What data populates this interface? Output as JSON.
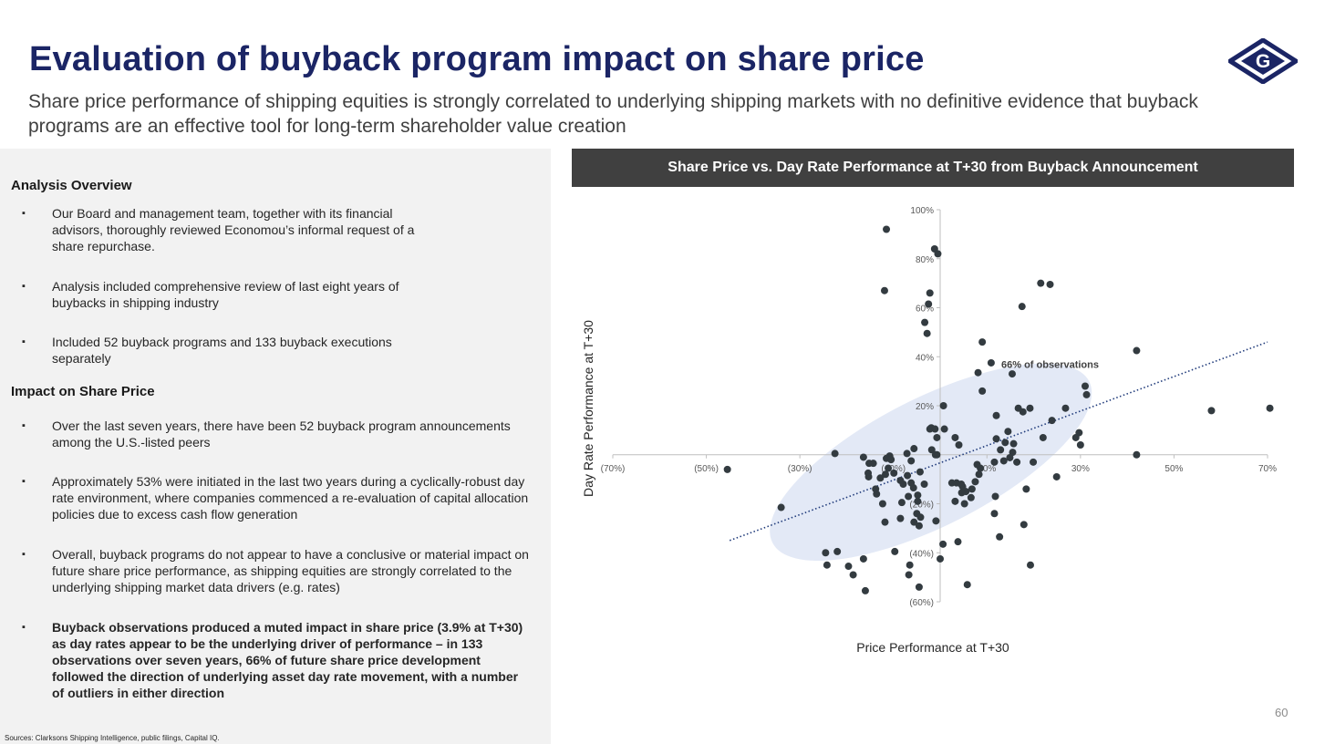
{
  "header": {
    "title": "Evaluation of buyback program impact on share price",
    "subtitle": "Share price performance of shipping equities is strongly correlated to underlying shipping markets with no definitive evidence that buyback programs are an effective tool for long-term shareholder value creation",
    "logo_letter": "G"
  },
  "left": {
    "overview_heading": "Analysis Overview",
    "overview_bullets": [
      "Our Board and management team, together with its financial advisors, thoroughly reviewed Economou’s informal request of a share repurchase.",
      "Analysis included comprehensive review of last eight years of buybacks in shipping industry",
      "Included 52 buyback programs and 133 buyback executions separately"
    ],
    "impact_heading": "Impact on Share Price",
    "impact_bullets": [
      "Over the last seven years, there have been 52 buyback program announcements among the U.S.-listed peers",
      "Approximately 53% were initiated in the last two years during a cyclically-robust day rate environment, where companies commenced a re-evaluation of capital allocation policies due to excess cash flow generation",
      "Overall, buyback programs do not appear to have a conclusive or material impact on future share price performance, as shipping equities are strongly correlated to the underlying shipping market data drivers (e.g. rates)",
      "Buyback observations produced a muted impact in share price (3.9% at T+30) as day rates appear to be the underlying driver of performance – in 133 observations over seven years, 66% of future share price development followed the direction of underlying asset day rate movement, with a number of outliers in either direction"
    ],
    "bullet_marker": "▪",
    "sources": "Sources: Clarksons Shipping Intelligence, public filings, Capital IQ."
  },
  "page_number": "60",
  "colors": {
    "title": "#1b2565",
    "header_bar": "#404040",
    "ellipse": "#e3e9f6",
    "dot": "#333b40",
    "trend": "#1f3a7a"
  },
  "chart_data": {
    "type": "scatter",
    "title": "Share Price vs. Day Rate Performance at T+30 from Buyback Announcement",
    "xlabel": "Price Performance at T+30",
    "ylabel": "Day Rate Performance at T+30",
    "xlim": [
      -70,
      70
    ],
    "ylim": [
      -60,
      100
    ],
    "x_ticks": [
      -70,
      -50,
      -30,
      -10,
      10,
      30,
      50,
      70
    ],
    "x_tick_labels": [
      "(70%)",
      "(50%)",
      "(30%)",
      "(10%)",
      "10%",
      "30%",
      "50%",
      "70%"
    ],
    "y_ticks": [
      -60,
      -40,
      -20,
      20,
      40,
      60,
      80,
      100
    ],
    "y_tick_labels": [
      "(60%)",
      "(40%)",
      "(20%)",
      "20%",
      "40%",
      "60%",
      "80%",
      "100%"
    ],
    "annotation": "66% of observations",
    "annotation_pos": [
      23.5,
      35.5
    ],
    "ellipse": {
      "center": [
        -2,
        -3
      ],
      "rx": 38,
      "ry": 26,
      "rotation_deg": -27
    },
    "trendline": {
      "x0": -45,
      "y0": -35,
      "x1": 70,
      "y1": 46
    },
    "points": [
      [
        -11.5,
        92
      ],
      [
        -1.2,
        84
      ],
      [
        -0.5,
        82
      ],
      [
        -11.9,
        67
      ],
      [
        -2.5,
        61.5
      ],
      [
        -2.2,
        66
      ],
      [
        -3.3,
        54
      ],
      [
        -2.8,
        49.5
      ],
      [
        21.5,
        70
      ],
      [
        23.5,
        69.5
      ],
      [
        17.5,
        60.5
      ],
      [
        9,
        46
      ],
      [
        42,
        42.5
      ],
      [
        10.9,
        37.5
      ],
      [
        8.1,
        33.5
      ],
      [
        15.4,
        33
      ],
      [
        31.0,
        28
      ],
      [
        31.3,
        24.5
      ],
      [
        9,
        26
      ],
      [
        0.7,
        20
      ],
      [
        12,
        16
      ],
      [
        16.7,
        19
      ],
      [
        17.7,
        17.5
      ],
      [
        19.2,
        19
      ],
      [
        26.8,
        19
      ],
      [
        23.9,
        14
      ],
      [
        58,
        18
      ],
      [
        70.5,
        19
      ],
      [
        -1.9,
        11
      ],
      [
        -2.2,
        10.5
      ],
      [
        -1.1,
        10.5
      ],
      [
        0.9,
        10.5
      ],
      [
        14.5,
        9.5
      ],
      [
        29.7,
        9
      ],
      [
        -0.7,
        7
      ],
      [
        3.2,
        7
      ],
      [
        12,
        6.5
      ],
      [
        22,
        7
      ],
      [
        29,
        7
      ],
      [
        4,
        4
      ],
      [
        13.9,
        5
      ],
      [
        15.7,
        4.5
      ],
      [
        30,
        4
      ],
      [
        -1.8,
        2
      ],
      [
        -5.6,
        2.5
      ],
      [
        -7.1,
        0.5
      ],
      [
        -1,
        0
      ],
      [
        -0.7,
        0
      ],
      [
        12.9,
        2
      ],
      [
        15.5,
        1
      ],
      [
        42,
        0
      ],
      [
        -22.5,
        0.5
      ],
      [
        -16.4,
        -1
      ],
      [
        -10.8,
        -0.5
      ],
      [
        -11.5,
        -1.5
      ],
      [
        -10.5,
        -2
      ],
      [
        -14.3,
        -3.5
      ],
      [
        -15.2,
        -3.5
      ],
      [
        -11.1,
        -5.5
      ],
      [
        -6.2,
        -2.5
      ],
      [
        -4.3,
        -7
      ],
      [
        -7.0,
        -8.5
      ],
      [
        -9.9,
        -7.5
      ],
      [
        -11.7,
        -8
      ],
      [
        -15.4,
        -7.5
      ],
      [
        -15.3,
        -9
      ],
      [
        -12.8,
        -9.5
      ],
      [
        11.6,
        -3
      ],
      [
        13.6,
        -2.5
      ],
      [
        16.4,
        -3
      ],
      [
        19.9,
        -3
      ],
      [
        14.9,
        -1.2
      ],
      [
        8.6,
        -5.5
      ],
      [
        8.3,
        -8
      ],
      [
        7.9,
        -4
      ],
      [
        -3.4,
        -12
      ],
      [
        -5.7,
        -13.5
      ],
      [
        -6.2,
        -11.5
      ],
      [
        -7.9,
        -12
      ],
      [
        -8.5,
        -10.5
      ],
      [
        -13.8,
        -14
      ],
      [
        -13.6,
        -16
      ],
      [
        -6.8,
        -17
      ],
      [
        -4.8,
        -16.5
      ],
      [
        -4.8,
        -19
      ],
      [
        -8.2,
        -19.5
      ],
      [
        -12.3,
        -20
      ],
      [
        2.5,
        -11.5
      ],
      [
        3.5,
        -11.5
      ],
      [
        4.5,
        -12
      ],
      [
        7.5,
        -11
      ],
      [
        24.9,
        -9
      ],
      [
        18.4,
        -14
      ],
      [
        11.8,
        -17
      ],
      [
        5.5,
        -15
      ],
      [
        6.8,
        -14
      ],
      [
        4.8,
        -13
      ],
      [
        4.6,
        -15.5
      ],
      [
        6.6,
        -17.5
      ],
      [
        3.2,
        -19
      ],
      [
        5.2,
        -20
      ],
      [
        11.6,
        -24
      ],
      [
        -5,
        -24
      ],
      [
        -4.2,
        -25.5
      ],
      [
        -8.5,
        -26
      ],
      [
        -5.6,
        -27.5
      ],
      [
        -4.5,
        -29
      ],
      [
        -11.8,
        -27.5
      ],
      [
        -0.9,
        -27
      ],
      [
        17.9,
        -28.5
      ],
      [
        12.7,
        -33.5
      ],
      [
        0.6,
        -36.5
      ],
      [
        3.8,
        -35.5
      ],
      [
        0,
        -42.5
      ],
      [
        -24.5,
        -40
      ],
      [
        -22,
        -39.5
      ],
      [
        -9.7,
        -39.5
      ],
      [
        -16.4,
        -42.5
      ],
      [
        -24.2,
        -45
      ],
      [
        -19.6,
        -45.5
      ],
      [
        -18.6,
        -49
      ],
      [
        -6.5,
        -45
      ],
      [
        -6.7,
        -49
      ],
      [
        -4.5,
        -54
      ],
      [
        -16,
        -55.5
      ],
      [
        5.8,
        -53
      ],
      [
        19.3,
        -45
      ],
      [
        -45.5,
        -6
      ],
      [
        -34,
        -21.5
      ]
    ]
  }
}
